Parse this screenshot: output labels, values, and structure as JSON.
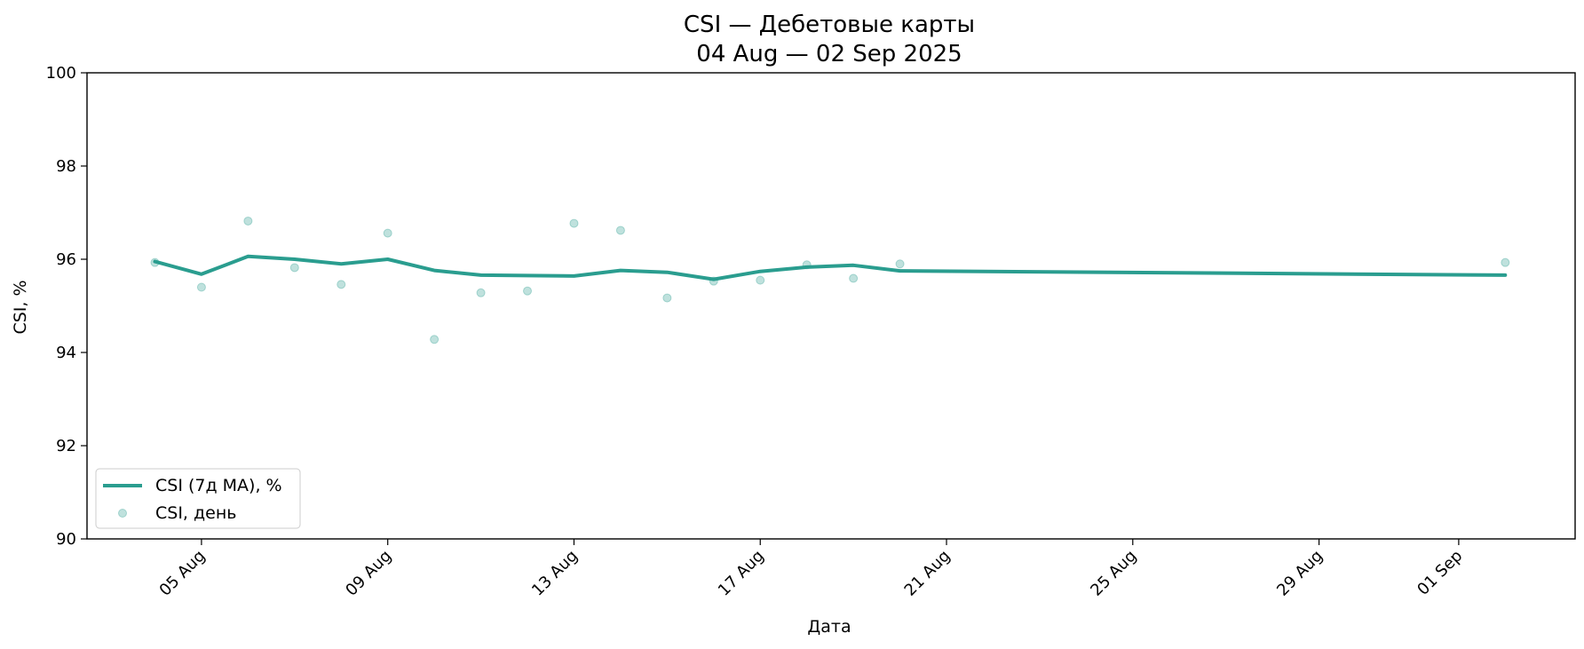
{
  "chart_data": {
    "type": "line",
    "title_line1": "CSI — Дебетовые карты",
    "title_line2": "04 Aug — 02 Sep 2025",
    "xlabel": "Дата",
    "ylabel": "CSI, %",
    "ylim": [
      90,
      100
    ],
    "yticks": [
      90,
      92,
      94,
      96,
      98,
      100
    ],
    "xlim": [
      "2025-08-02T13:00",
      "2025-09-03T12:00"
    ],
    "xticks": [
      {
        "date": "2025-08-05",
        "label": "05 Aug"
      },
      {
        "date": "2025-08-09",
        "label": "09 Aug"
      },
      {
        "date": "2025-08-13",
        "label": "13 Aug"
      },
      {
        "date": "2025-08-17",
        "label": "17 Aug"
      },
      {
        "date": "2025-08-21",
        "label": "21 Aug"
      },
      {
        "date": "2025-08-25",
        "label": "25 Aug"
      },
      {
        "date": "2025-08-29",
        "label": "29 Aug"
      },
      {
        "date": "2025-09-01",
        "label": "01 Sep"
      }
    ],
    "grid": false,
    "legend_position": "lower-left",
    "series": [
      {
        "name": "CSI (7д MA), %",
        "kind": "line",
        "color": "#2a9d8f",
        "points": [
          {
            "x": "2025-08-04",
            "y": 95.95
          },
          {
            "x": "2025-08-05",
            "y": 95.68
          },
          {
            "x": "2025-08-06",
            "y": 96.06
          },
          {
            "x": "2025-08-07",
            "y": 96.0
          },
          {
            "x": "2025-08-08",
            "y": 95.9
          },
          {
            "x": "2025-08-09",
            "y": 96.0
          },
          {
            "x": "2025-08-10",
            "y": 95.76
          },
          {
            "x": "2025-08-11",
            "y": 95.66
          },
          {
            "x": "2025-08-12",
            "y": 95.65
          },
          {
            "x": "2025-08-13",
            "y": 95.64
          },
          {
            "x": "2025-08-14",
            "y": 95.76
          },
          {
            "x": "2025-08-15",
            "y": 95.72
          },
          {
            "x": "2025-08-16",
            "y": 95.57
          },
          {
            "x": "2025-08-17",
            "y": 95.74
          },
          {
            "x": "2025-08-18",
            "y": 95.83
          },
          {
            "x": "2025-08-19",
            "y": 95.87
          },
          {
            "x": "2025-08-20",
            "y": 95.75
          },
          {
            "x": "2025-09-02",
            "y": 95.66
          }
        ]
      },
      {
        "name": "CSI, день",
        "kind": "scatter",
        "color": "#2a9d8f",
        "points": [
          {
            "x": "2025-08-04",
            "y": 95.93
          },
          {
            "x": "2025-08-05",
            "y": 95.4
          },
          {
            "x": "2025-08-06",
            "y": 96.82
          },
          {
            "x": "2025-08-07",
            "y": 95.82
          },
          {
            "x": "2025-08-08",
            "y": 95.46
          },
          {
            "x": "2025-08-09",
            "y": 96.56
          },
          {
            "x": "2025-08-10",
            "y": 94.28
          },
          {
            "x": "2025-08-11",
            "y": 95.28
          },
          {
            "x": "2025-08-12",
            "y": 95.32
          },
          {
            "x": "2025-08-13",
            "y": 96.77
          },
          {
            "x": "2025-08-14",
            "y": 96.62
          },
          {
            "x": "2025-08-15",
            "y": 95.17
          },
          {
            "x": "2025-08-16",
            "y": 95.53
          },
          {
            "x": "2025-08-17",
            "y": 95.55
          },
          {
            "x": "2025-08-18",
            "y": 95.88
          },
          {
            "x": "2025-08-19",
            "y": 95.59
          },
          {
            "x": "2025-08-20",
            "y": 95.9
          },
          {
            "x": "2025-09-02",
            "y": 95.93
          }
        ]
      }
    ]
  }
}
